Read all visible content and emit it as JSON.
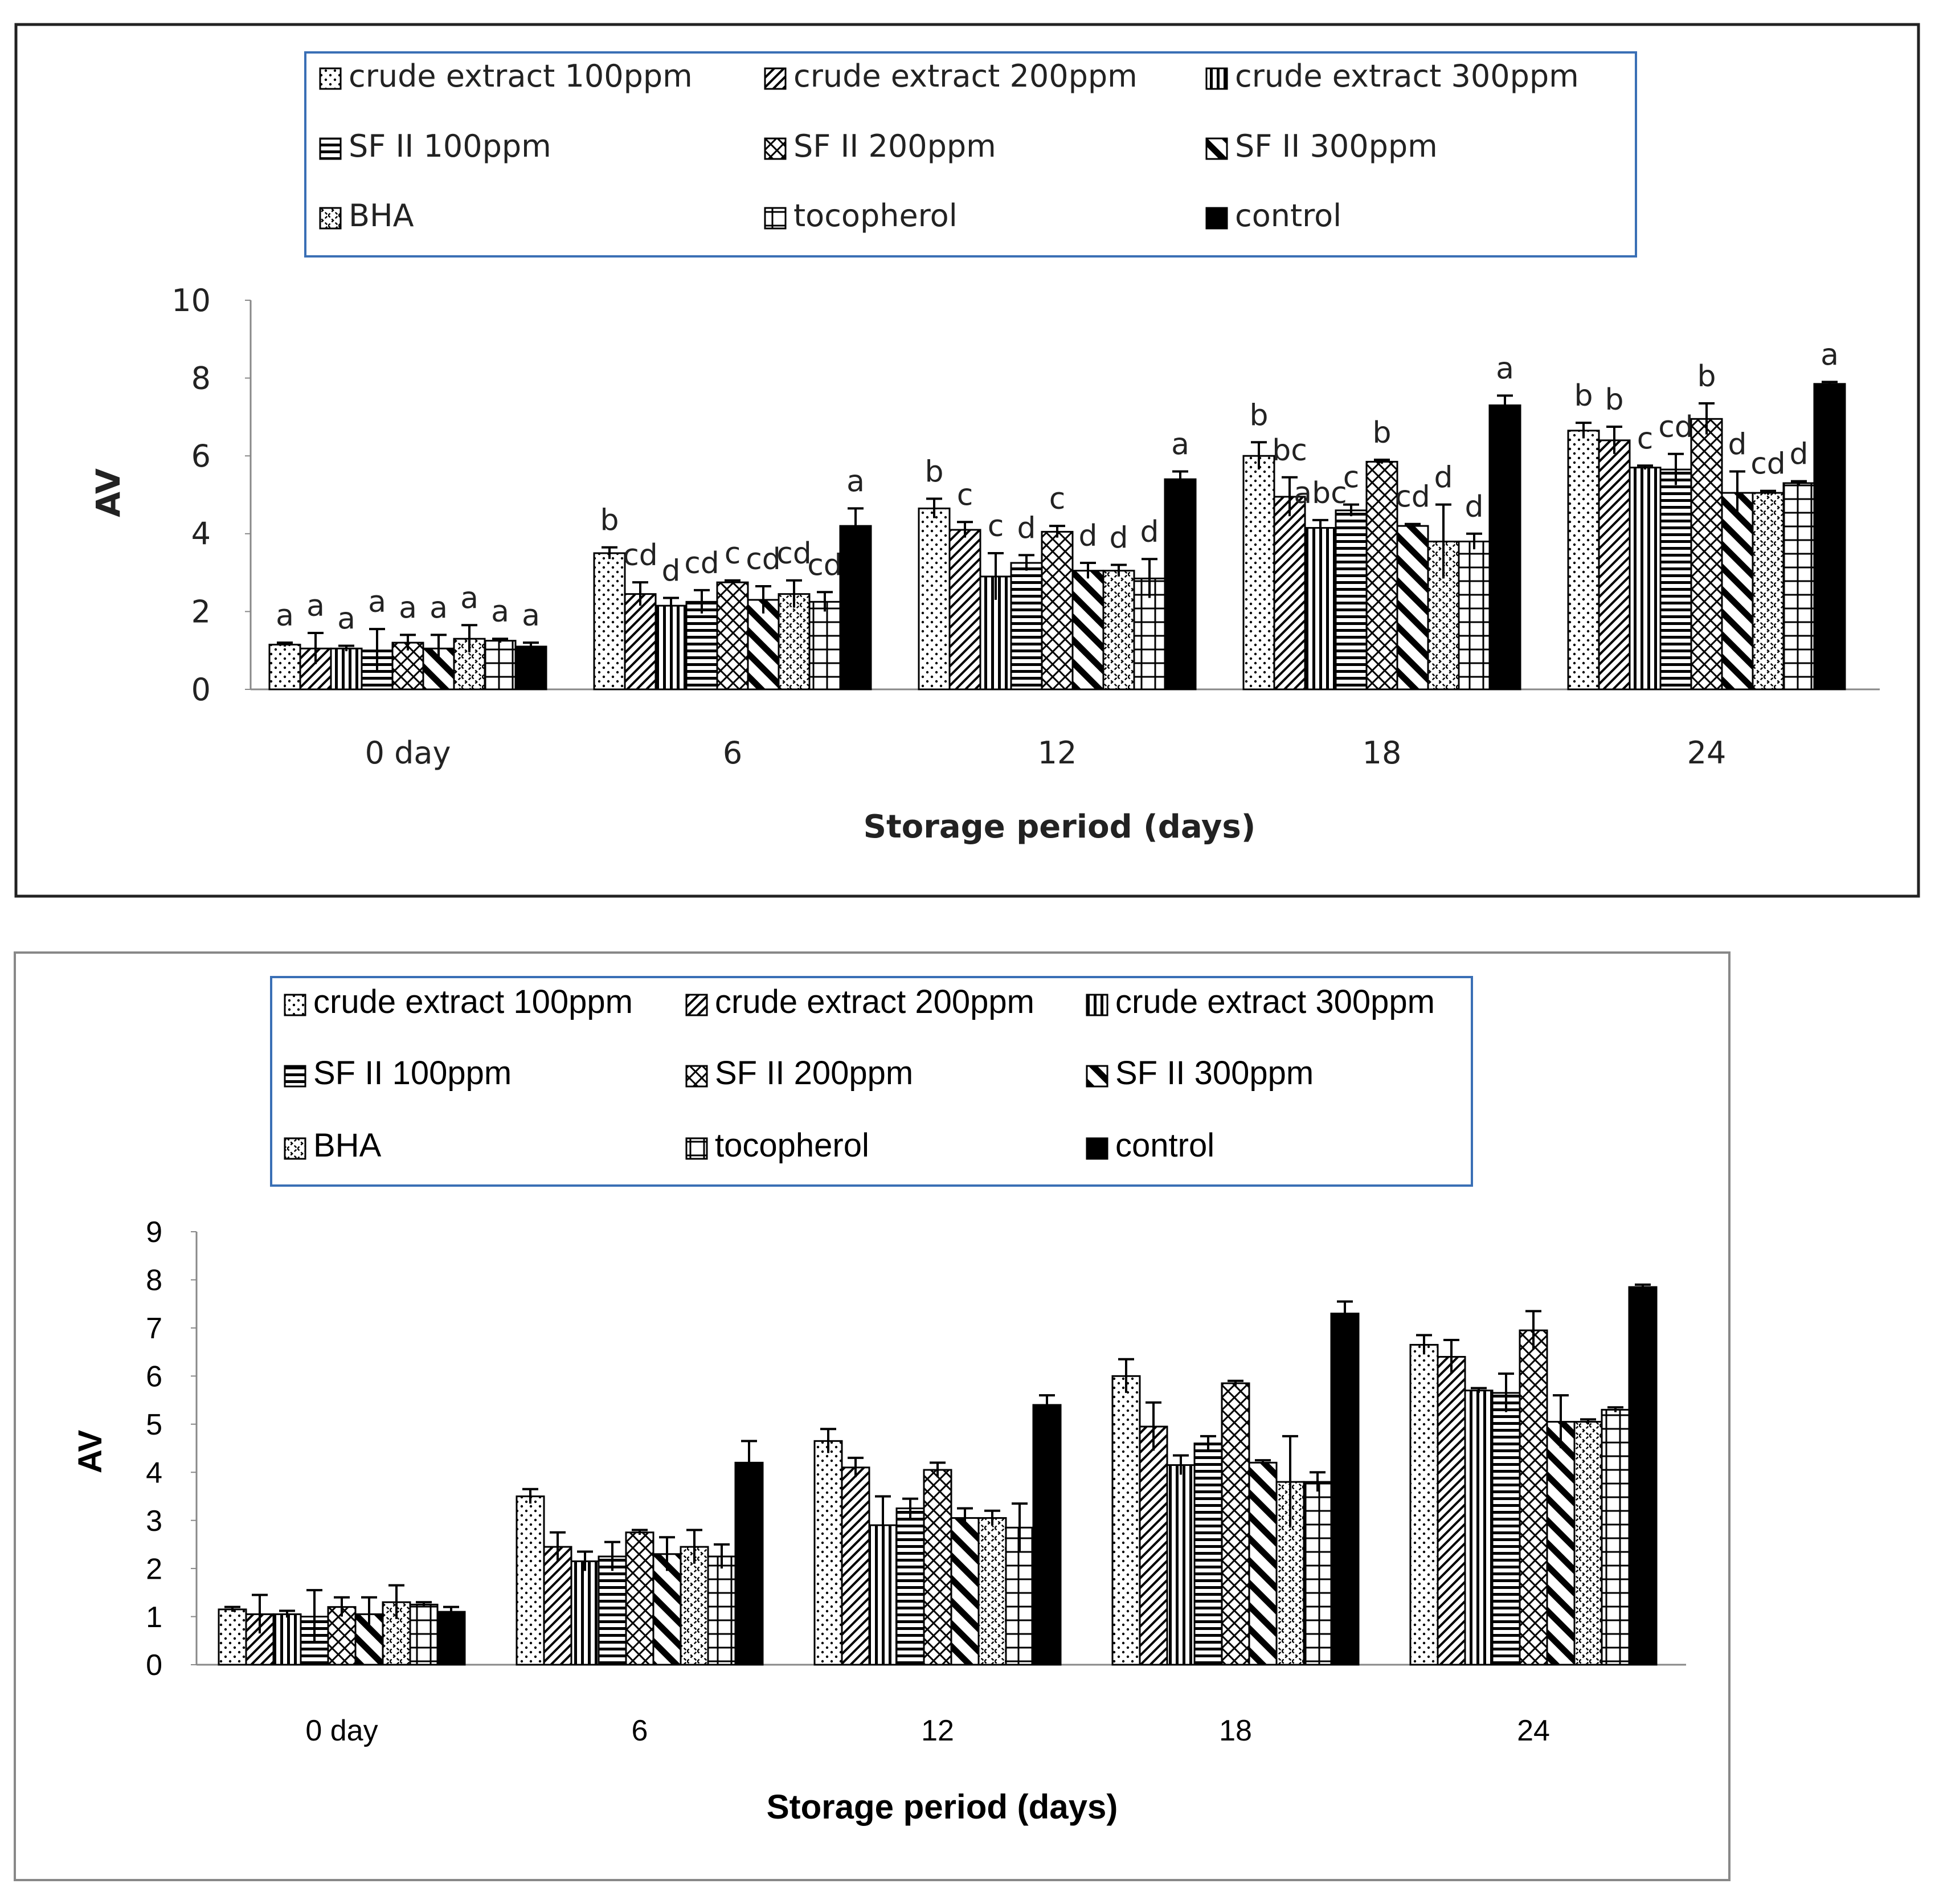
{
  "legend_entries": [
    "crude extract 100ppm",
    "crude extract 200ppm",
    "crude extract 300ppm",
    "SF II 100ppm",
    "SF II 200ppm",
    "SF II 300ppm",
    "BHA",
    "tocopherol",
    "control"
  ],
  "patterns": [
    "dots",
    "diag-dense",
    "vertical",
    "horizontal",
    "cross-diag",
    "diag-thick",
    "dash-diag",
    "grid",
    "solid"
  ],
  "chart_data": [
    {
      "type": "bar",
      "title": "",
      "xlabel": "Storage period (days)",
      "ylabel": "AV",
      "ylim": [
        0,
        10
      ],
      "yticks": [
        "0",
        "2",
        "4",
        "6",
        "8",
        "10"
      ],
      "categories": [
        "0 day",
        "6",
        "12",
        "18",
        "24"
      ],
      "series": [
        {
          "name": "crude extract 100ppm",
          "values": [
            1.15,
            3.5,
            4.65,
            6.0,
            6.65
          ],
          "errors": [
            0.05,
            0.15,
            0.25,
            0.35,
            0.2
          ]
        },
        {
          "name": "crude extract 200ppm",
          "values": [
            1.05,
            2.45,
            4.1,
            4.95,
            6.4
          ],
          "errors": [
            0.4,
            0.3,
            0.2,
            0.5,
            0.35
          ]
        },
        {
          "name": "crude extract 300ppm",
          "values": [
            1.05,
            2.15,
            2.9,
            4.15,
            5.7
          ],
          "errors": [
            0.07,
            0.2,
            0.6,
            0.2,
            0.05
          ]
        },
        {
          "name": "SF II 100ppm",
          "values": [
            1.0,
            2.25,
            3.25,
            4.6,
            5.65
          ],
          "errors": [
            0.55,
            0.3,
            0.2,
            0.15,
            0.4
          ]
        },
        {
          "name": "SF II 200ppm",
          "values": [
            1.2,
            2.75,
            4.05,
            5.85,
            6.95
          ],
          "errors": [
            0.2,
            0.05,
            0.15,
            0.05,
            0.4
          ]
        },
        {
          "name": "SF II 300ppm",
          "values": [
            1.05,
            2.3,
            3.05,
            4.2,
            5.05
          ],
          "errors": [
            0.35,
            0.35,
            0.2,
            0.05,
            0.55
          ]
        },
        {
          "name": "BHA",
          "values": [
            1.3,
            2.45,
            3.05,
            3.8,
            5.05
          ],
          "errors": [
            0.35,
            0.35,
            0.15,
            0.95,
            0.05
          ]
        },
        {
          "name": "tocopherol",
          "values": [
            1.25,
            2.25,
            2.85,
            3.8,
            5.3
          ],
          "errors": [
            0.05,
            0.25,
            0.5,
            0.2,
            0.05
          ]
        },
        {
          "name": "control",
          "values": [
            1.1,
            4.2,
            5.4,
            7.3,
            7.85
          ],
          "errors": [
            0.1,
            0.45,
            0.2,
            0.25,
            0.05
          ]
        }
      ],
      "significance_labels": [
        [
          "a",
          "a",
          "a",
          "a",
          "a",
          "a",
          "a",
          "a",
          "a"
        ],
        [
          "b",
          "cd",
          "d",
          "cd",
          "c",
          "cd",
          "cd",
          "cd",
          "a"
        ],
        [
          "b",
          "c",
          "c",
          "d",
          "c",
          "d",
          "d",
          "d",
          "a"
        ],
        [
          "b",
          "bc",
          "abc",
          "c",
          "b",
          "cd",
          "d",
          "d",
          "a"
        ],
        [
          "b",
          "b",
          "c",
          "cd",
          "b",
          "d",
          "cd",
          "d",
          "a"
        ]
      ]
    },
    {
      "type": "bar",
      "title": "",
      "xlabel": "Storage period (days)",
      "ylabel": "AV",
      "ylim": [
        0,
        9
      ],
      "yticks": [
        "0",
        "1",
        "2",
        "3",
        "4",
        "5",
        "6",
        "7",
        "8",
        "9"
      ],
      "categories": [
        "0 day",
        "6",
        "12",
        "18",
        "24"
      ],
      "series": [
        {
          "name": "crude extract 100ppm",
          "values": [
            1.15,
            3.5,
            4.65,
            6.0,
            6.65
          ],
          "errors": [
            0.05,
            0.15,
            0.25,
            0.35,
            0.2
          ]
        },
        {
          "name": "crude extract 200ppm",
          "values": [
            1.05,
            2.45,
            4.1,
            4.95,
            6.4
          ],
          "errors": [
            0.4,
            0.3,
            0.2,
            0.5,
            0.35
          ]
        },
        {
          "name": "crude extract 300ppm",
          "values": [
            1.05,
            2.15,
            2.9,
            4.15,
            5.7
          ],
          "errors": [
            0.07,
            0.2,
            0.6,
            0.2,
            0.05
          ]
        },
        {
          "name": "SF II 100ppm",
          "values": [
            1.0,
            2.25,
            3.25,
            4.6,
            5.65
          ],
          "errors": [
            0.55,
            0.3,
            0.2,
            0.15,
            0.4
          ]
        },
        {
          "name": "SF II 200ppm",
          "values": [
            1.2,
            2.75,
            4.05,
            5.85,
            6.95
          ],
          "errors": [
            0.2,
            0.05,
            0.15,
            0.05,
            0.4
          ]
        },
        {
          "name": "SF II 300ppm",
          "values": [
            1.05,
            2.3,
            3.05,
            4.2,
            5.05
          ],
          "errors": [
            0.35,
            0.35,
            0.2,
            0.05,
            0.55
          ]
        },
        {
          "name": "BHA",
          "values": [
            1.3,
            2.45,
            3.05,
            3.8,
            5.05
          ],
          "errors": [
            0.35,
            0.35,
            0.15,
            0.95,
            0.05
          ]
        },
        {
          "name": "tocopherol",
          "values": [
            1.25,
            2.25,
            2.85,
            3.8,
            5.3
          ],
          "errors": [
            0.05,
            0.25,
            0.5,
            0.2,
            0.05
          ]
        },
        {
          "name": "control",
          "values": [
            1.1,
            4.2,
            5.4,
            7.3,
            7.85
          ],
          "errors": [
            0.1,
            0.45,
            0.2,
            0.25,
            0.05
          ]
        }
      ]
    }
  ]
}
